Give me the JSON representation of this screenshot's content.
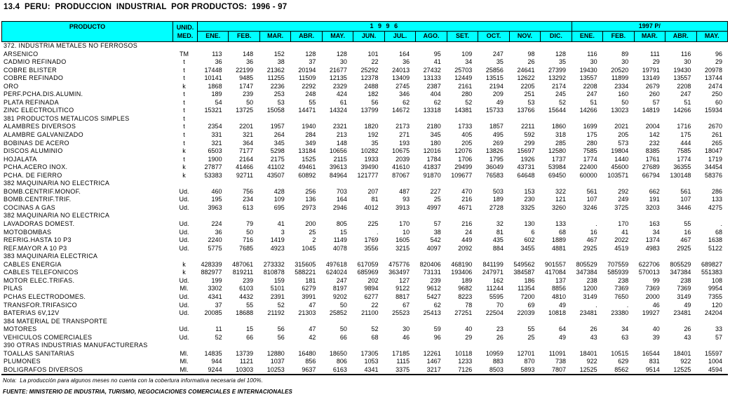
{
  "title": "13.4  PERU:  PRODUCCION  INDUSTRIAL  POR PRODUCTOS:  1996 - 97",
  "colors": {
    "header_bg": "#00ffff",
    "border": "#000000",
    "text": "#000000"
  },
  "table": {
    "product_header": "PRODUCTO",
    "unit_header_line1": "UNID.",
    "unit_header_line2": "MED.",
    "year_groups": [
      {
        "label": "1 9 9 6",
        "months": [
          "ENE.",
          "FEB.",
          "MAR.",
          "ABR.",
          "MAY.",
          "JUN.",
          "JUL.",
          "AGO.",
          "SET.",
          "OCT.",
          "NOV.",
          "DIC."
        ]
      },
      {
        "label": "1997 P/",
        "months": [
          "ENE.",
          "FEB.",
          "MAR.",
          "ABR.",
          "MAY."
        ]
      }
    ],
    "rows": [
      {
        "section": true,
        "label": "372. INDUSTRIA METALES NO FERROSOS",
        "unit": "",
        "values": []
      },
      {
        "label": "ARSENICO",
        "unit": "TM",
        "values": [
          "113",
          "148",
          "152",
          "128",
          "128",
          "101",
          "164",
          "95",
          "109",
          "247",
          "98",
          "128",
          "116",
          "89",
          "111",
          "116",
          "96"
        ]
      },
      {
        "label": "CADMIO REFINADO",
        "unit": "t",
        "values": [
          "36",
          "36",
          "38",
          "37",
          "30",
          "22",
          "36",
          "41",
          "34",
          "35",
          "26",
          "35",
          "30",
          "30",
          "29",
          "30",
          "29"
        ]
      },
      {
        "label": "COBRE BLISTER",
        "unit": "t",
        "values": [
          "17448",
          "22199",
          "21362",
          "20194",
          "21677",
          "25292",
          "24013",
          "27432",
          "25703",
          "25856",
          "24641",
          "27399",
          "19430",
          "20520",
          "19791",
          "19430",
          "20978"
        ]
      },
      {
        "label": "COBRE REFINADO",
        "unit": "t",
        "values": [
          "10141",
          "9485",
          "11255",
          "11509",
          "12135",
          "12378",
          "13409",
          "13133",
          "12449",
          "13515",
          "12622",
          "13292",
          "13557",
          "11899",
          "13149",
          "13557",
          "13744"
        ]
      },
      {
        "label": "ORO",
        "unit": "k",
        "values": [
          "1868",
          "1747",
          "2236",
          "2292",
          "2329",
          "2488",
          "2745",
          "2387",
          "2161",
          "2194",
          "2205",
          "2174",
          "2208",
          "2334",
          "2679",
          "2208",
          "2474"
        ]
      },
      {
        "label": "PERF.PCHA.DIS.ALUMIN.",
        "unit": "t",
        "values": [
          "189",
          "239",
          "253",
          "248",
          "424",
          "182",
          "346",
          "404",
          "280",
          "209",
          "251",
          "245",
          "247",
          "160",
          "260",
          "247",
          "250"
        ]
      },
      {
        "label": "PLATA REFINADA",
        "unit": "t",
        "values": [
          "54",
          "50",
          "53",
          "55",
          "61",
          "56",
          "62",
          "62",
          "52",
          "49",
          "53",
          "52",
          "51",
          "50",
          "57",
          "51",
          "60"
        ]
      },
      {
        "label": "ZINC ELECTROLITICO",
        "unit": "t",
        "values": [
          "15321",
          "13725",
          "15058",
          "14471",
          "14324",
          "13799",
          "14672",
          "13318",
          "14381",
          "15733",
          "13766",
          "15644",
          "14266",
          "13023",
          "14819",
          "14266",
          "15934"
        ]
      },
      {
        "section": true,
        "label": "381 PRODUCTOS METALICOS SIMPLES",
        "unit": "t",
        "values": []
      },
      {
        "label": "ALAMBRES DIVERSOS",
        "unit": "t",
        "values": [
          "2354",
          "2201",
          "1957",
          "1940",
          "2321",
          "1820",
          "2173",
          "2180",
          "1733",
          "1857",
          "2211",
          "1860",
          "1699",
          "2021",
          "2004",
          "1716",
          "2670"
        ]
      },
      {
        "label": "ALAMBRE GALVANIZADO",
        "unit": "t",
        "values": [
          "331",
          "321",
          "264",
          "284",
          "213",
          "192",
          "271",
          "345",
          "405",
          "495",
          "592",
          "318",
          "175",
          "205",
          "142",
          "175",
          "261"
        ]
      },
      {
        "label": "BOBINAS DE ACERO",
        "unit": "t",
        "values": [
          "321",
          "364",
          "345",
          "349",
          "148",
          "35",
          "193",
          "180",
          "205",
          "269",
          "299",
          "285",
          "280",
          "573",
          "232",
          "444",
          "265"
        ]
      },
      {
        "label": "DISCOS ALUMINIO",
        "unit": "k",
        "values": [
          "6503",
          "7177",
          "5298",
          "13184",
          "10656",
          "10282",
          "10675",
          "12016",
          "12076",
          "13826",
          "15697",
          "12580",
          "7585",
          "19804",
          "8385",
          "7585",
          "18047"
        ]
      },
      {
        "label": "HOJALATA",
        "unit": "t",
        "values": [
          "1900",
          "2164",
          "2175",
          "1525",
          "2115",
          "1933",
          "2039",
          "1784",
          "1706",
          "1795",
          "1926",
          "1737",
          "1774",
          "1440",
          "1761",
          "1774",
          "1719"
        ]
      },
      {
        "label": "PCHA.ACERO INOX.",
        "unit": "k",
        "values": [
          "27877",
          "41466",
          "41102",
          "49461",
          "39613",
          "39490",
          "41610",
          "41837",
          "29499",
          "36049",
          "43731",
          "53984",
          "22400",
          "45600",
          "27689",
          "36355",
          "34454"
        ]
      },
      {
        "label": "PCHA. DE FIERRO",
        "unit": "k",
        "values": [
          "53383",
          "92711",
          "43507",
          "60892",
          "84964",
          "121777",
          "87067",
          "91870",
          "109677",
          "76583",
          "64648",
          "69450",
          "60000",
          "103571",
          "66794",
          "130148",
          "58376"
        ]
      },
      {
        "section": true,
        "label": "382 MAQUINARIA NO ELECTRICA",
        "unit": "",
        "values": []
      },
      {
        "label": "BOMB.CENTRIF.MONOF.",
        "unit": "Ud.",
        "values": [
          "460",
          "756",
          "428",
          "256",
          "703",
          "207",
          "487",
          "227",
          "470",
          "503",
          "153",
          "322",
          "561",
          "292",
          "662",
          "561",
          "286"
        ]
      },
      {
        "label": "BOMB.CENTRIF.TRIF.",
        "unit": "Ud.",
        "values": [
          "195",
          "234",
          "109",
          "136",
          "164",
          "81",
          "93",
          "25",
          "216",
          "189",
          "230",
          "121",
          "107",
          "249",
          "191",
          "107",
          "133"
        ]
      },
      {
        "label": "COCINAS A GAS",
        "unit": "Ud.",
        "values": [
          "3963",
          "613",
          "695",
          "2973",
          "2946",
          "4012",
          "3913",
          "4997",
          "4671",
          "2728",
          "3325",
          "3260",
          "3246",
          "3725",
          "3203",
          "3446",
          "4275"
        ]
      },
      {
        "section": true,
        "label": "382 MAQUINARIA NO ELECTRICA",
        "unit": "",
        "values": []
      },
      {
        "label": "LAVADORAS DOMEST.",
        "unit": "Ud.",
        "values": [
          "224",
          "79",
          "41",
          "200",
          "805",
          "225",
          "170",
          "57",
          "216",
          "32",
          "130",
          "133",
          ".",
          "170",
          "163",
          "55",
          "."
        ]
      },
      {
        "label": "MOTOBOMBAS",
        "unit": "Ud.",
        "values": [
          "36",
          "50",
          "3",
          "25",
          "15",
          ".",
          "10",
          "38",
          "24",
          "81",
          "6",
          "68",
          "16",
          "41",
          "34",
          "16",
          "68"
        ]
      },
      {
        "label": "REFRIG.HASTA 10 P3",
        "unit": "Ud.",
        "values": [
          "2240",
          "716",
          "1419",
          "2",
          "1149",
          "1769",
          "1605",
          "542",
          "449",
          "435",
          "602",
          "1889",
          "467",
          "2022",
          "1374",
          "467",
          "1638"
        ]
      },
      {
        "label": "REF.MAYOR A 10 P3",
        "unit": "Ud.",
        "values": [
          "5775",
          "7685",
          "4923",
          "1045",
          "4078",
          "3556",
          "3215",
          "4097",
          "2092",
          "884",
          "3455",
          "4881",
          "2925",
          "4519",
          "4983",
          "2925",
          "5122"
        ]
      },
      {
        "section": true,
        "label": "383 MAQUINARIA ELECTRICA",
        "unit": "",
        "values": []
      },
      {
        "label": "CABLES ENERGIA",
        "unit": "k",
        "values": [
          "428339",
          "487061",
          "273332",
          "315605",
          "497618",
          "617059",
          "475776",
          "820406",
          "468190",
          "841199",
          "549562",
          "901557",
          "805529",
          "707559",
          "622706",
          "805529",
          "689827"
        ]
      },
      {
        "label": "CABLES TELEFONICOS",
        "unit": "k",
        "values": [
          "882977",
          "819211",
          "810878",
          "588221",
          "624024",
          "685969",
          "363497",
          "73131",
          "193406",
          "247971",
          "384587",
          "417084",
          "347384",
          "585939",
          "570013",
          "347384",
          "551383"
        ]
      },
      {
        "label": "MOTOR ELEC.TRIFAS.",
        "unit": "Ud.",
        "values": [
          "199",
          "239",
          "159",
          "181",
          "247",
          "202",
          "127",
          "239",
          "189",
          "162",
          "186",
          "137",
          "238",
          "238",
          "99",
          "238",
          "108"
        ]
      },
      {
        "label": "PILAS",
        "unit": "Ml.",
        "values": [
          "3302",
          "6103",
          "5101",
          "6279",
          "8197",
          "9894",
          "9122",
          "9612",
          "9682",
          "11244",
          "11354",
          "8856",
          "1200",
          "7369",
          "7369",
          "7369",
          "9954"
        ]
      },
      {
        "label": "PCHAS ELECTRODOMES.",
        "unit": "Ud.",
        "values": [
          "4341",
          "4432",
          "2391",
          "3991",
          "9202",
          "6277",
          "8817",
          "5427",
          "8223",
          "5595",
          "7200",
          "4810",
          "3149",
          "7650",
          "2000",
          "3149",
          "7355"
        ]
      },
      {
        "label": "TRANSFOR.TRIFASICO",
        "unit": "Ud.",
        "values": [
          "37",
          "55",
          "52",
          "47",
          "50",
          "22",
          "67",
          "62",
          "78",
          "70",
          "69",
          "49",
          ".",
          ".",
          "46",
          "49",
          "120"
        ]
      },
      {
        "label": "BATERIAS 6V,12V",
        "unit": "Ud.",
        "values": [
          "20085",
          "18688",
          "21192",
          "21303",
          "25852",
          "21100",
          "25523",
          "25413",
          "27251",
          "22504",
          "22039",
          "10818",
          "23481",
          "23380",
          "19927",
          "23481",
          "24204"
        ]
      },
      {
        "section": true,
        "label": "384 MATERIAL DE TRANSPORTE",
        "unit": "",
        "values": []
      },
      {
        "label": "MOTORES",
        "unit": "Ud.",
        "values": [
          "11",
          "15",
          "56",
          "47",
          "50",
          "52",
          "30",
          "59",
          "40",
          "23",
          "55",
          "64",
          "26",
          "34",
          "40",
          "26",
          "33"
        ]
      },
      {
        "label": "VEHICULOS COMERCIALES",
        "unit": "Ud.",
        "values": [
          "52",
          "66",
          "56",
          "42",
          "66",
          "68",
          "46",
          "96",
          "29",
          "26",
          "25",
          "49",
          "43",
          "63",
          "39",
          "43",
          "57"
        ]
      },
      {
        "section": true,
        "label": "390 OTRAS INDUSTRIAS MANUFACTURERAS",
        "unit": "",
        "values": []
      },
      {
        "label": "TOALLAS SANITARIAS",
        "unit": "Ml.",
        "values": [
          "14835",
          "13739",
          "12880",
          "16480",
          "18650",
          "17305",
          "17185",
          "12261",
          "10118",
          "10959",
          "12701",
          "11091",
          "18401",
          "10515",
          "16544",
          "18401",
          "15597"
        ]
      },
      {
        "label": "PLUMONES",
        "unit": "Ml.",
        "values": [
          "944",
          "1121",
          "1037",
          "856",
          "806",
          "1053",
          "1115",
          "1467",
          "1233",
          "883",
          "870",
          "738",
          "922",
          "629",
          "831",
          "922",
          "1004"
        ]
      },
      {
        "label": "BOLIGRAFOS DIVERSOS",
        "unit": "Ml.",
        "values": [
          "9244",
          "10303",
          "10253",
          "9637",
          "6163",
          "4341",
          "3375",
          "3217",
          "7126",
          "8503",
          "5893",
          "7807",
          "12525",
          "8562",
          "9514",
          "12525",
          "4594"
        ]
      }
    ]
  },
  "footer": {
    "note": "Nota:  La producción para algunos meses no cuenta con la cobertura informativa necesaria del 100%.",
    "source": "FUENTE: MINISTERIO DE INDUSTRIA, TURISMO, NEGOCIACIONES COMERCIALES E INTERNACIONALES"
  }
}
